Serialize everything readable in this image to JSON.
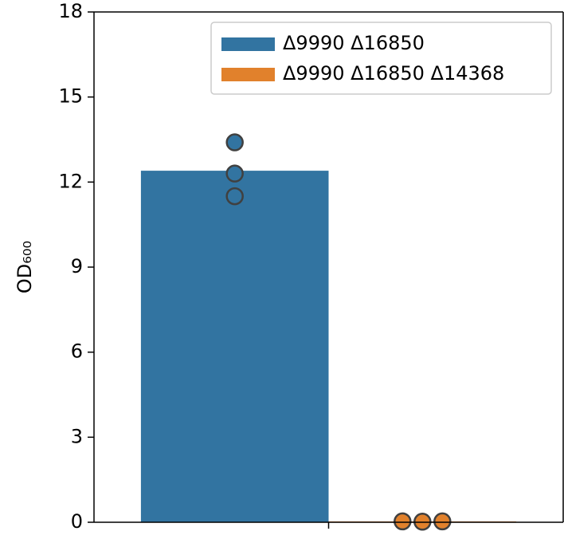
{
  "chart_data": {
    "type": "bar",
    "categories": [
      null
    ],
    "series": [
      {
        "name": "Δ9990 Δ16850",
        "color": "#3274a1",
        "values": [
          12.4
        ],
        "points": [
          [
            13.4,
            12.3,
            11.5
          ]
        ]
      },
      {
        "name": "Δ9990 Δ16850 Δ14368",
        "color": "#e1812c",
        "values": [
          0.03
        ],
        "points": [
          [
            0.03,
            0.02,
            0.03
          ]
        ]
      }
    ],
    "ylabel": "OD₆₀₀",
    "ylim": [
      0,
      18
    ],
    "yticks": [
      0,
      3,
      6,
      9,
      12,
      15,
      18
    ],
    "grid": false,
    "legend": "upper right",
    "point_edge_color": "#404040"
  }
}
